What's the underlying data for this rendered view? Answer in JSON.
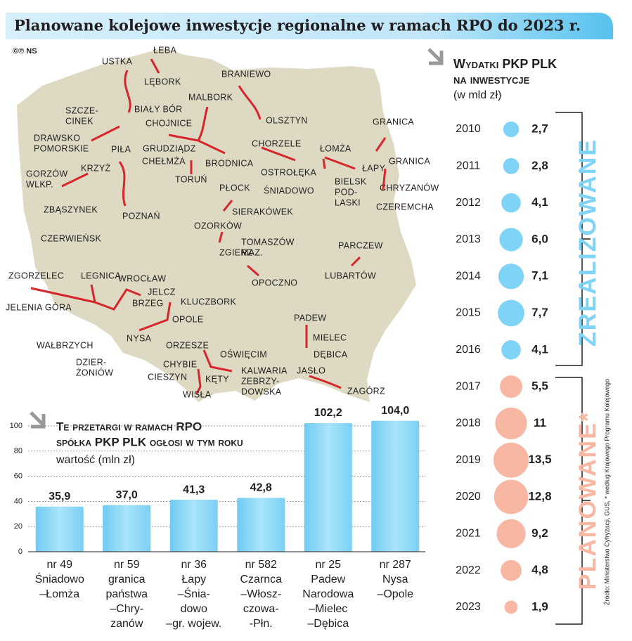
{
  "title": "Planowane kolejowe inwestycje regionalne w ramach RPO do 2023 r.",
  "credit": "©℗ NS",
  "map": {
    "labels": [
      "ŁEBA",
      "USTKA",
      "LĘBORK",
      "BRANIEWO",
      "MALBORK",
      "BIAŁY BÓR",
      [
        "SZCZE-",
        "CINEK"
      ],
      "OLSZTYN",
      "GRANICA",
      "CHOJNICE",
      [
        "DRAWSKO",
        "POMORSKIE"
      ],
      "CHORZELE",
      "ŁOMŻA",
      "GRUDZIĄDZ",
      "PIŁA",
      "CHEŁMŻA",
      "BRODNICA",
      "OSTROŁĘKA",
      "ŁAPY",
      "GRANICA",
      [
        "GORZÓW",
        "WLKP."
      ],
      "KRZYŻ",
      "TORUŃ",
      "ŚNIADOWO",
      [
        "BIELSK",
        "POD-",
        "LASKI"
      ],
      "CHRYZANÓW",
      "PŁOCK",
      "CZEREMCHA",
      "ZBĄSZYNEK",
      "POZNAŃ",
      "SIERAKÓWEK",
      "OZORKÓW",
      "CZERWIEŃSK",
      [
        "TOMASZÓW",
        "MAZ."
      ],
      "PARCZEW",
      "ZGIERZ",
      "OPOCZNO",
      "LUBARTÓW",
      "ZGORZELEC",
      "LEGNICA",
      "WROCŁAW",
      "JELCZ",
      "KLUCZBORK",
      "BRZEG",
      "JELENIA GÓRA",
      "PADEW",
      "OPOLE",
      "MIELEC",
      "NYSA",
      "WAŁBRZYCH",
      "DĘBICA",
      "ORZESZE",
      "OŚWIĘCIM",
      [
        "DZIER-",
        "ŻONIÓW"
      ],
      "CHYBIE",
      [
        "KALWARIA",
        "ZEBRZY-",
        "DOWSKA"
      ],
      "JASŁO",
      "CIESZYN",
      "KĘTY",
      "ZAGÓRZ",
      "WISŁA"
    ]
  },
  "chart_data": [
    {
      "type": "bar",
      "title": [
        "Te przetargi w ramach RPO",
        "spółka PKP PLK ogłosi w tym roku"
      ],
      "subtitle": "wartość (mln zł)",
      "categories": [
        [
          "nr 49",
          "Śniadowo",
          "–Łomża"
        ],
        [
          "nr 59",
          "granica",
          "państwa",
          "–Chry-",
          "zanów"
        ],
        [
          "nr 36",
          "Łapy",
          "–Śnia-",
          "dowo",
          "–gr. wojew."
        ],
        [
          "nr 582",
          "Czarnca",
          "–Włosz-",
          "czowa-",
          "-Płn."
        ],
        [
          "nr 25",
          "Padew",
          "Narodowa",
          "–Mielec",
          "–Dębica"
        ],
        [
          "nr 287",
          "Nysa",
          "–Opole"
        ]
      ],
      "values": [
        35.9,
        37.0,
        41.3,
        42.8,
        102.2,
        104.0
      ],
      "value_labels": [
        "35,9",
        "37,0",
        "41,3",
        "42,8",
        "102,2",
        "104,0"
      ],
      "color": "#8fd8f6",
      "ylim": [
        0,
        105
      ],
      "yticks": [
        0,
        20,
        40,
        60,
        80,
        100
      ],
      "grid": true
    },
    {
      "type": "bubble",
      "title": [
        "Wydatki PKP PLK",
        "na inwestycje"
      ],
      "subtitle": "(w mld zł)",
      "categories": [
        "2010",
        "2011",
        "2012",
        "2013",
        "2014",
        "2015",
        "2016",
        "2017",
        "2018",
        "2019",
        "2020",
        "2021",
        "2022",
        "2023"
      ],
      "series": [
        {
          "name": "ZREALIZOWANE",
          "color": "#7fd3f6",
          "values": [
            2.7,
            2.8,
            4.1,
            6.0,
            7.1,
            7.7,
            4.1,
            null,
            null,
            null,
            null,
            null,
            null,
            null
          ],
          "value_labels": [
            "2,7",
            "2,8",
            "4,1",
            "6,0",
            "7,1",
            "7,7",
            "4,1",
            null,
            null,
            null,
            null,
            null,
            null,
            null
          ]
        },
        {
          "name": "PLANOWANE*",
          "color": "#f7b7a2",
          "values": [
            null,
            null,
            null,
            null,
            null,
            null,
            null,
            5.5,
            11,
            13.5,
            12.8,
            9.2,
            4.8,
            1.9
          ],
          "value_labels": [
            null,
            null,
            null,
            null,
            null,
            null,
            null,
            "5,5",
            "11",
            "13,5",
            "12,8",
            "9,2",
            "4,8",
            "1,9"
          ]
        }
      ]
    }
  ],
  "source": "Źródło: Ministerstwo Cyfryzacji, GUS, * według Krajowego Programu Kolejowego"
}
